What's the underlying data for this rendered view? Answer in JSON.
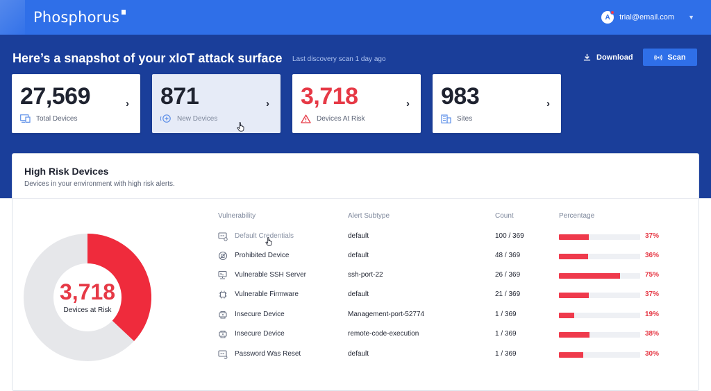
{
  "header": {
    "logo": "Phosphorus",
    "user_initial": "A",
    "user_email": "trial@email.com"
  },
  "hero": {
    "title": "Here’s a snapshot of your xIoT attack surface",
    "scan_status": "Last discovery scan 1 day ago",
    "download_label": "Download",
    "scan_label": "Scan"
  },
  "stats": [
    {
      "value": "27,569",
      "label": "Total Devices",
      "icon": "devices-icon"
    },
    {
      "value": "871",
      "label": "New Devices",
      "icon": "add-circle-icon"
    },
    {
      "value": "3,718",
      "label": "Devices At Risk",
      "icon": "warning-icon"
    },
    {
      "value": "983",
      "label": "Sites",
      "icon": "building-icon"
    }
  ],
  "panel": {
    "title": "High Risk Devices",
    "subtitle": "Devices in your environment with high risk alerts."
  },
  "donut": {
    "value": "3,718",
    "label": "Devices at Risk",
    "risk_fraction": 0.37
  },
  "table": {
    "headers": [
      "Vulnerability",
      "Alert Subtype",
      "Count",
      "Percentage"
    ],
    "rows": [
      {
        "vulnerability": "Default Credentials",
        "subtype": "default",
        "count": "100 / 369",
        "percent": "37%",
        "fraction": 0.37
      },
      {
        "vulnerability": "Prohibited Device",
        "subtype": "default",
        "count": "48 / 369",
        "percent": "36%",
        "fraction": 0.36
      },
      {
        "vulnerability": "Vulnerable SSH Server",
        "subtype": "ssh-port-22",
        "count": "26 / 369",
        "percent": "75%",
        "fraction": 0.75
      },
      {
        "vulnerability": "Vulnerable Firmware",
        "subtype": "default",
        "count": "21 / 369",
        "percent": "37%",
        "fraction": 0.37
      },
      {
        "vulnerability": "Insecure Device",
        "subtype": "Management-port-52774",
        "count": "1 / 369",
        "percent": "19%",
        "fraction": 0.19
      },
      {
        "vulnerability": "Insecure Device",
        "subtype": "remote-code-execution",
        "count": "1 / 369",
        "percent": "38%",
        "fraction": 0.38
      },
      {
        "vulnerability": "Password Was Reset",
        "subtype": "default",
        "count": "1 / 369",
        "percent": "30%",
        "fraction": 0.3
      }
    ]
  },
  "colors": {
    "brand_blue": "#2f6fe8",
    "hero_navy": "#1a3e9a",
    "risk_red": "#ef3a4c"
  }
}
